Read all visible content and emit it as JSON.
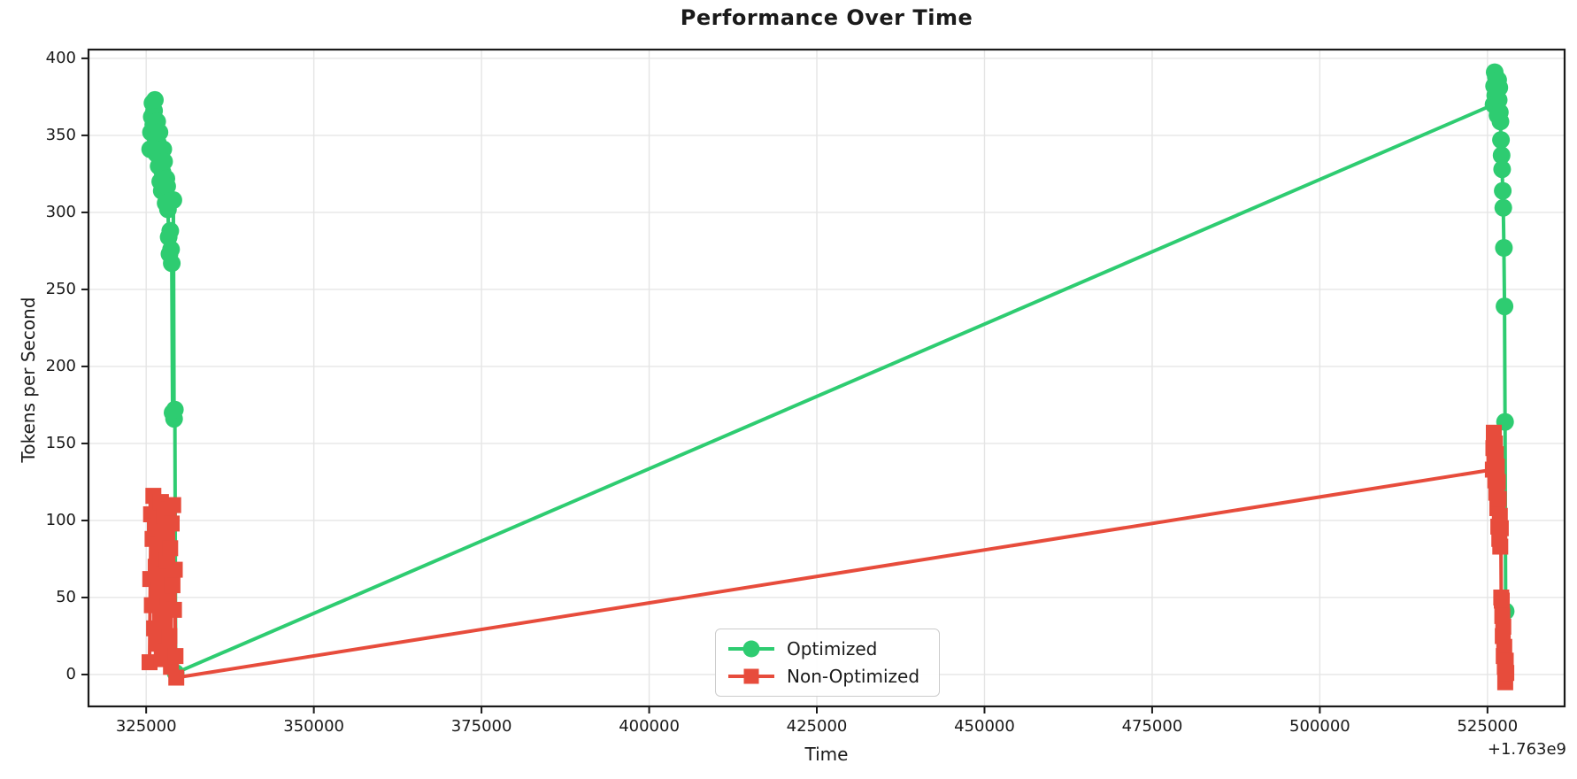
{
  "chart_data": {
    "type": "line",
    "title": "Performance Over Time",
    "xlabel": "Time",
    "ylabel": "Tokens per Second",
    "x_offset_label": "+1.763e9",
    "x_ticks": [
      325000,
      350000,
      375000,
      400000,
      425000,
      450000,
      475000,
      500000,
      525000
    ],
    "y_ticks": [
      0,
      50,
      100,
      150,
      200,
      250,
      300,
      350,
      400
    ],
    "xlim": [
      316400,
      536500
    ],
    "ylim": [
      -20.7,
      405.7
    ],
    "grid": true,
    "grid_color": "#e5e5e5",
    "text_color": "#1a1a1a",
    "background": "#ffffff",
    "legend_position": "lower center",
    "series": [
      {
        "name": "Optimized",
        "color": "#2ecc71",
        "marker": "circle",
        "points": [
          [
            325600,
            341
          ],
          [
            325715,
            352
          ],
          [
            325830,
            362
          ],
          [
            325945,
            371
          ],
          [
            326060,
            357
          ],
          [
            326175,
            366
          ],
          [
            326290,
            373
          ],
          [
            326405,
            348
          ],
          [
            326520,
            338
          ],
          [
            326635,
            359
          ],
          [
            326750,
            345
          ],
          [
            326865,
            330
          ],
          [
            326980,
            352
          ],
          [
            327095,
            320
          ],
          [
            327210,
            336
          ],
          [
            327325,
            314
          ],
          [
            327440,
            326
          ],
          [
            327555,
            341
          ],
          [
            327670,
            333
          ],
          [
            327785,
            318
          ],
          [
            327900,
            306
          ],
          [
            328015,
            322
          ],
          [
            328130,
            317
          ],
          [
            328245,
            302
          ],
          [
            328360,
            284
          ],
          [
            328475,
            273
          ],
          [
            328590,
            288
          ],
          [
            328705,
            276
          ],
          [
            328820,
            267
          ],
          [
            328935,
            170
          ],
          [
            329050,
            308
          ],
          [
            329165,
            166
          ],
          [
            329280,
            172
          ],
          [
            329395,
            1
          ],
          [
            525900,
            370
          ],
          [
            525986,
            382
          ],
          [
            526072,
            391
          ],
          [
            526158,
            376
          ],
          [
            526244,
            388
          ],
          [
            526330,
            368
          ],
          [
            526416,
            379
          ],
          [
            526502,
            363
          ],
          [
            526588,
            386
          ],
          [
            526674,
            373
          ],
          [
            526760,
            381
          ],
          [
            526846,
            365
          ],
          [
            526932,
            359
          ],
          [
            527018,
            347
          ],
          [
            527104,
            337
          ],
          [
            527190,
            328
          ],
          [
            527276,
            314
          ],
          [
            527362,
            303
          ],
          [
            527448,
            277
          ],
          [
            527534,
            239
          ],
          [
            527620,
            164
          ],
          [
            527706,
            41
          ]
        ]
      },
      {
        "name": "Non-Optimized",
        "color": "#e74c3c",
        "marker": "square",
        "points": [
          [
            325500,
            8
          ],
          [
            325614,
            62
          ],
          [
            325728,
            104
          ],
          [
            325842,
            45
          ],
          [
            325956,
            88
          ],
          [
            326070,
            116
          ],
          [
            326184,
            30
          ],
          [
            326298,
            96
          ],
          [
            326412,
            70
          ],
          [
            326526,
            108
          ],
          [
            326640,
            20
          ],
          [
            326754,
            84
          ],
          [
            326868,
            55
          ],
          [
            326982,
            100
          ],
          [
            327096,
            40
          ],
          [
            327210,
            112
          ],
          [
            327324,
            10
          ],
          [
            327438,
            90
          ],
          [
            327552,
            65
          ],
          [
            327666,
            103
          ],
          [
            327780,
            35
          ],
          [
            327894,
            95
          ],
          [
            328008,
            15
          ],
          [
            328122,
            74
          ],
          [
            328236,
            50
          ],
          [
            328350,
            107
          ],
          [
            328464,
            25
          ],
          [
            328578,
            82
          ],
          [
            328692,
            5
          ],
          [
            328806,
            98
          ],
          [
            328920,
            58
          ],
          [
            329034,
            110
          ],
          [
            329148,
            42
          ],
          [
            329262,
            68
          ],
          [
            329376,
            12
          ],
          [
            329490,
            -2
          ],
          [
            525800,
            133
          ],
          [
            525874,
            147
          ],
          [
            525948,
            157
          ],
          [
            526022,
            139
          ],
          [
            526096,
            150
          ],
          [
            526170,
            126
          ],
          [
            526244,
            143
          ],
          [
            526318,
            118
          ],
          [
            526392,
            135
          ],
          [
            526466,
            108
          ],
          [
            526540,
            125
          ],
          [
            526614,
            96
          ],
          [
            526688,
            114
          ],
          [
            526762,
            88
          ],
          [
            526836,
            103
          ],
          [
            526910,
            83
          ],
          [
            526984,
            95
          ],
          [
            527058,
            50
          ],
          [
            527132,
            48
          ],
          [
            527206,
            38
          ],
          [
            527280,
            25
          ],
          [
            527354,
            31
          ],
          [
            527428,
            12
          ],
          [
            527502,
            18
          ],
          [
            527576,
            5
          ],
          [
            527650,
            -5
          ],
          [
            527724,
            9
          ],
          [
            527798,
            1
          ]
        ]
      }
    ]
  }
}
